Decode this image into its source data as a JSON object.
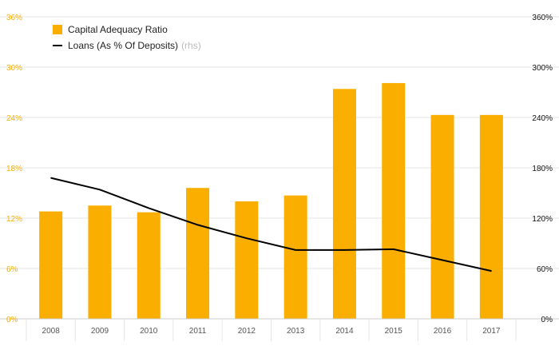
{
  "chart_data": {
    "type": "bar+line",
    "categories": [
      "2008",
      "2009",
      "2010",
      "2011",
      "2012",
      "2013",
      "2014",
      "2015",
      "2016",
      "2017"
    ],
    "series": [
      {
        "name": "Capital Adequacy Ratio",
        "type": "bar",
        "axis": "left",
        "values": [
          12.8,
          13.5,
          12.7,
          15.6,
          14.0,
          14.7,
          27.4,
          28.1,
          24.3,
          24.3
        ]
      },
      {
        "name": "Loans (As % Of Deposits)",
        "axis_note": "(rhs)",
        "type": "line",
        "axis": "right",
        "values": [
          168,
          154,
          132,
          112,
          96,
          82,
          82,
          83,
          70,
          57
        ]
      }
    ],
    "left_axis": {
      "ticks": [
        "0%",
        "6%",
        "12%",
        "18%",
        "24%",
        "30%",
        "36%"
      ],
      "range": [
        0,
        36
      ]
    },
    "right_axis": {
      "ticks": [
        "0%",
        "60%",
        "120%",
        "180%",
        "240%",
        "300%",
        "360%"
      ],
      "range": [
        0,
        360
      ]
    },
    "grid": true,
    "legend_position": "top-left"
  },
  "colors": {
    "bar": "#f9ae00",
    "line": "#000000",
    "left_tick": "#f9ae00",
    "right_tick": "#111111",
    "grid": "#e6e6e6",
    "xtick": "#555555"
  }
}
